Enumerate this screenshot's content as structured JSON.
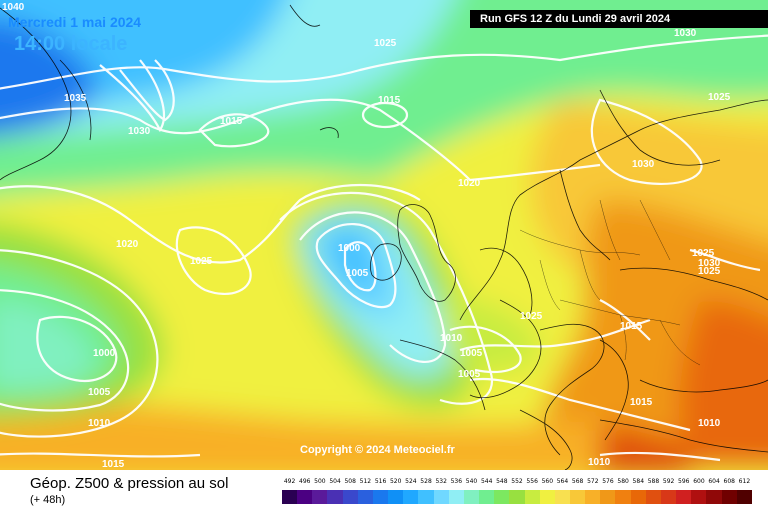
{
  "header": {
    "date": "Mercredi 1 mai 2024",
    "time": "14:00 locale",
    "corner_value": "1040",
    "run": "Run GFS 12 Z du Lundi 29 avril 2024"
  },
  "copyright": "Copyright © 2024 Meteociel.fr",
  "footer": {
    "title": "Géop. Z500 & pression au sol",
    "lead": "(+ 48h)"
  },
  "legend": {
    "values": [
      "492",
      "496",
      "500",
      "504",
      "508",
      "512",
      "516",
      "520",
      "524",
      "528",
      "532",
      "536",
      "540",
      "544",
      "548",
      "552",
      "556",
      "560",
      "564",
      "568",
      "572",
      "576",
      "580",
      "584",
      "588",
      "592",
      "596",
      "600",
      "604",
      "608",
      "612"
    ],
    "colors": [
      "#2a0052",
      "#4b0082",
      "#5a1a9a",
      "#4a30b4",
      "#3a48cc",
      "#2a60de",
      "#1a78ee",
      "#1090f6",
      "#20a8ff",
      "#40c0ff",
      "#70d8ff",
      "#90eef4",
      "#80f0c0",
      "#70ee90",
      "#7ce860",
      "#98e040",
      "#c8ec40",
      "#f0f040",
      "#f8e050",
      "#f8c838",
      "#f8b028",
      "#f09818",
      "#f08010",
      "#e86808",
      "#e05010",
      "#d83818",
      "#d02020",
      "#b01010",
      "#900808",
      "#700000",
      "#500000"
    ]
  },
  "isobar_labels": [
    "1025",
    "1030",
    "1035",
    "1030",
    "1015",
    "1015",
    "1025",
    "1030",
    "1025",
    "1020",
    "1020",
    "1025",
    "1030",
    "1000",
    "1005",
    "1025",
    "1025",
    "1000",
    "1005",
    "1010",
    "1005",
    "1005",
    "1010",
    "1015",
    "1010",
    "1015",
    "1015",
    "1010"
  ]
}
